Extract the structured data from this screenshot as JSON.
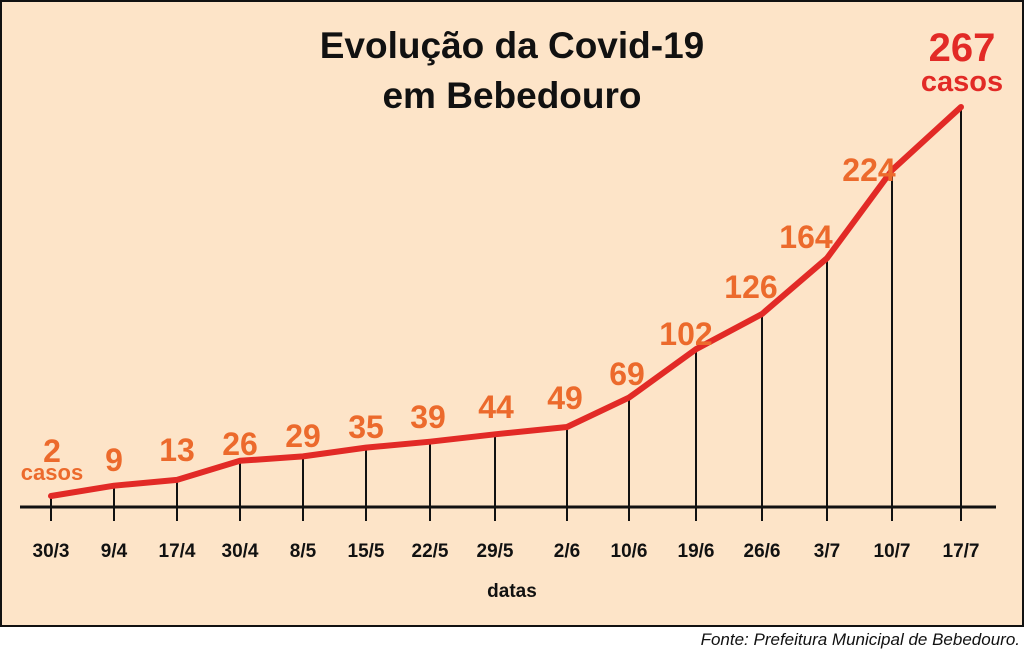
{
  "chart_data": {
    "type": "line",
    "title": [
      "Evolução da Covid-19",
      "em Bebedouro"
    ],
    "xlabel": "datas",
    "ylabel": "",
    "categories": [
      "30/3",
      "9/4",
      "17/4",
      "30/4",
      "8/5",
      "15/5",
      "22/5",
      "29/5",
      "2/6",
      "10/6",
      "19/6",
      "26/6",
      "3/7",
      "10/7",
      "17/7"
    ],
    "values": [
      2,
      9,
      13,
      26,
      29,
      35,
      39,
      44,
      49,
      69,
      102,
      126,
      164,
      224,
      267
    ],
    "value_labels": [
      "2",
      "9",
      "13",
      "26",
      "29",
      "35",
      "39",
      "44",
      "49",
      "69",
      "102",
      "126",
      "164",
      "224",
      "267"
    ],
    "first_unit_label": "casos",
    "last_unit_label": "casos",
    "grid": false,
    "legend": "none"
  },
  "colors": {
    "background": "#fde4c8",
    "frame": "#111111",
    "line": "#e22a26",
    "value_label": "#ec6a2c",
    "highlight_label": "#e22a26",
    "axis": "#111111"
  },
  "source_note": "Fonte: Prefeitura Municipal de Bebedouro."
}
